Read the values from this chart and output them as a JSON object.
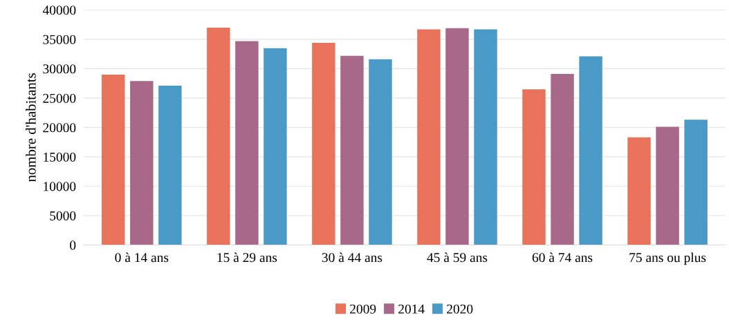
{
  "chart_data": {
    "type": "bar",
    "ylabel": "nombre d'habitants",
    "categories": [
      "0 à 14 ans",
      "15 à 29 ans",
      "30 à 44 ans",
      "45 à 59 ans",
      "60 à 74 ans",
      "75 ans ou plus"
    ],
    "series": [
      {
        "name": "2009",
        "color": "#e8735a",
        "values": [
          29000,
          37000,
          34400,
          36700,
          26500,
          18300
        ]
      },
      {
        "name": "2014",
        "color": "#a8688a",
        "values": [
          27900,
          34700,
          32200,
          36900,
          29100,
          20100
        ]
      },
      {
        "name": "2020",
        "color": "#4a9ac8",
        "values": [
          27100,
          33500,
          31600,
          36700,
          32100,
          21300
        ]
      }
    ],
    "ylim": [
      0,
      40000
    ],
    "yticks": [
      0,
      5000,
      10000,
      15000,
      20000,
      25000,
      30000,
      35000,
      40000
    ],
    "grid": "y",
    "legend": "bottom"
  }
}
